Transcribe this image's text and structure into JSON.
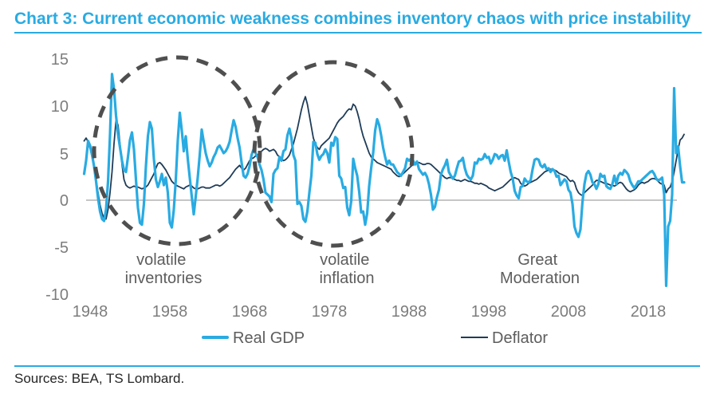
{
  "title": "Chart 3: Current economic weakness combines inventory chaos with price instability",
  "source_note": "Sources: BEA, TS Lombard.",
  "colors": {
    "accent_blue": "#29ABE2",
    "real_gdp_line": "#29ABE2",
    "deflator_line": "#1F3C58",
    "circle_gray": "#4F4F4F",
    "tick_gray": "#7D7D7D",
    "annotation_gray": "#5D5D5D",
    "zero_line_gray": "#B3B3B3"
  },
  "chart_data": {
    "type": "line",
    "title": "Chart 3: Current economic weakness combines inventory chaos with price instability",
    "xlabel": "",
    "ylabel": "",
    "x_start": 1947.25,
    "x_step": 0.25,
    "x_range": [
      1947,
      2023
    ],
    "ylim": [
      -10,
      15
    ],
    "grid": "zero-line-only",
    "legend_position": "bottom",
    "x_tick_labels": [
      "1948",
      "1958",
      "1968",
      "1978",
      "1988",
      "1998",
      "2008",
      "2018"
    ],
    "y_tick_labels": [
      "15",
      "10",
      "5",
      "0",
      "-5",
      "-10"
    ],
    "y_tick_values": [
      15,
      10,
      5,
      0,
      -5,
      -10
    ],
    "series": [
      {
        "id": "gdp",
        "name": "Real GDP",
        "color": "#29ABE2",
        "values": [
          2.8,
          4.2,
          6.3,
          5.8,
          4.8,
          3.6,
          2.0,
          0.2,
          -1.2,
          -2.0,
          -2.2,
          -1.0,
          2.0,
          7.0,
          13.4,
          11.8,
          9.0,
          7.0,
          5.6,
          4.2,
          3.2,
          3.0,
          4.6,
          6.4,
          7.2,
          5.4,
          2.2,
          -0.8,
          -2.4,
          -2.6,
          -0.4,
          3.6,
          6.8,
          8.3,
          7.6,
          4.4,
          2.2,
          1.4,
          2.0,
          2.8,
          1.6,
          2.4,
          0.8,
          -2.4,
          -2.9,
          -1.0,
          2.2,
          6.4,
          9.3,
          7.4,
          5.2,
          6.8,
          4.4,
          2.4,
          0.4,
          -1.5,
          0.4,
          2.4,
          4.8,
          7.5,
          6.2,
          5.0,
          4.2,
          3.6,
          4.0,
          4.6,
          5.0,
          5.6,
          5.8,
          5.4,
          5.0,
          5.2,
          5.6,
          6.2,
          7.4,
          8.5,
          7.8,
          6.6,
          5.6,
          4.0,
          2.6,
          2.4,
          2.8,
          3.6,
          4.8,
          5.4,
          5.0,
          4.6,
          3.8,
          3.2,
          2.2,
          0.8,
          0.6,
          0.4,
          -0.2,
          2.8,
          3.2,
          3.4,
          4.6,
          4.2,
          5.2,
          5.4,
          6.9,
          7.6,
          6.6,
          4.8,
          4.2,
          -0.4,
          -0.2,
          -0.6,
          -2.0,
          -2.3,
          -1.2,
          0.8,
          2.6,
          6.2,
          6.1,
          4.9,
          4.3,
          4.7,
          4.9,
          5.4,
          5.0,
          4.0,
          6.1,
          5.8,
          6.7,
          6.5,
          2.6,
          2.3,
          1.3,
          1.4,
          -0.8,
          -1.6,
          -0.1,
          4.4,
          3.4,
          2.6,
          0.9,
          -1.3,
          -1.2,
          -2.6,
          -1.4,
          1.5,
          3.4,
          5.0,
          7.4,
          8.6,
          8.0,
          6.9,
          5.6,
          4.6,
          3.8,
          4.2,
          3.8,
          3.8,
          3.4,
          3.0,
          2.8,
          2.6,
          3.0,
          3.4,
          4.4,
          4.2,
          4.4,
          4.2,
          3.8,
          4.1,
          3.3,
          3.0,
          2.7,
          2.9,
          2.5,
          1.7,
          0.6,
          -1.0,
          -0.7,
          0.3,
          1.1,
          2.7,
          3.3,
          3.7,
          4.3,
          3.0,
          2.6,
          2.3,
          2.6,
          3.4,
          4.1,
          4.2,
          4.5,
          3.4,
          2.7,
          2.4,
          2.2,
          2.6,
          4.0,
          3.9,
          4.4,
          4.3,
          4.4,
          4.9,
          4.5,
          4.6,
          3.9,
          4.3,
          4.9,
          4.8,
          4.4,
          4.7,
          4.8,
          4.2,
          5.3,
          4.1,
          3.0,
          2.3,
          1.0,
          0.5,
          0.2,
          1.4,
          1.5,
          2.3,
          2.0,
          1.9,
          2.1,
          3.3,
          4.3,
          4.4,
          4.3,
          3.7,
          3.5,
          3.8,
          3.3,
          3.4,
          3.0,
          3.3,
          3.1,
          2.5,
          2.6,
          1.6,
          1.9,
          2.2,
          2.0,
          1.1,
          0.8,
          -0.4,
          -2.8,
          -3.5,
          -3.9,
          -3.1,
          -0.2,
          1.7,
          2.8,
          3.1,
          2.7,
          1.9,
          1.7,
          1.2,
          1.7,
          2.8,
          2.5,
          2.6,
          1.5,
          1.3,
          1.2,
          1.7,
          2.6,
          1.7,
          2.6,
          2.9,
          2.7,
          3.2,
          3.0,
          2.7,
          2.0,
          1.6,
          1.3,
          1.6,
          2.0,
          2.0,
          2.2,
          2.4,
          2.6,
          2.8,
          3.0,
          3.1,
          2.8,
          2.3,
          2.1,
          2.2,
          2.4,
          0.6,
          -9.1,
          -2.8,
          -2.2,
          0.6,
          11.9,
          5.0,
          5.7,
          3.6,
          1.9,
          1.9
        ]
      },
      {
        "id": "deflator",
        "name": "Deflator",
        "color": "#1F3C58",
        "values": [
          6.3,
          6.6,
          6.2,
          5.5,
          4.6,
          3.4,
          2.2,
          0.8,
          -0.5,
          -1.4,
          -1.9,
          -2.0,
          -1.0,
          0.8,
          3.0,
          6.0,
          8.5,
          8.0,
          6.0,
          3.8,
          2.2,
          1.6,
          1.4,
          1.3,
          1.4,
          1.5,
          1.4,
          1.4,
          1.3,
          1.2,
          1.3,
          1.4,
          1.6,
          2.0,
          2.4,
          2.8,
          3.4,
          3.9,
          4.0,
          3.8,
          3.5,
          3.2,
          2.8,
          2.4,
          2.0,
          1.8,
          1.6,
          1.5,
          1.4,
          1.3,
          1.2,
          1.4,
          1.5,
          1.6,
          1.5,
          1.3,
          1.2,
          1.2,
          1.3,
          1.4,
          1.4,
          1.3,
          1.3,
          1.3,
          1.4,
          1.5,
          1.6,
          1.6,
          1.5,
          1.6,
          1.8,
          2.0,
          2.2,
          2.4,
          2.7,
          3.0,
          3.3,
          3.5,
          3.7,
          3.4,
          3.2,
          3.4,
          3.8,
          4.2,
          4.4,
          4.5,
          4.7,
          4.8,
          5.0,
          5.2,
          5.4,
          5.5,
          5.4,
          5.2,
          5.3,
          5.4,
          5.2,
          4.8,
          4.6,
          4.4,
          4.2,
          4.3,
          4.5,
          4.8,
          5.4,
          6.0,
          6.8,
          7.6,
          8.6,
          9.6,
          10.4,
          11.0,
          10.2,
          9.0,
          7.8,
          6.6,
          6.0,
          5.6,
          5.4,
          5.8,
          6.0,
          6.2,
          6.4,
          6.6,
          7.0,
          7.4,
          7.8,
          8.2,
          8.5,
          8.7,
          8.9,
          9.2,
          9.5,
          9.7,
          9.6,
          10.2,
          10.0,
          9.4,
          8.6,
          7.6,
          6.8,
          6.2,
          5.6,
          5.0,
          4.6,
          4.4,
          4.2,
          4.0,
          3.9,
          3.8,
          3.7,
          3.6,
          3.5,
          3.4,
          3.3,
          3.0,
          2.8,
          2.6,
          2.5,
          2.6,
          2.8,
          3.0,
          3.2,
          3.4,
          3.6,
          3.8,
          3.9,
          4.0,
          4.0,
          3.9,
          3.8,
          3.8,
          3.9,
          3.9,
          3.8,
          3.6,
          3.4,
          3.2,
          3.0,
          2.8,
          2.6,
          2.4,
          2.3,
          2.4,
          2.4,
          2.3,
          2.2,
          2.1,
          2.1,
          2.0,
          2.1,
          2.2,
          2.1,
          2.0,
          2.0,
          1.9,
          1.8,
          1.8,
          1.7,
          1.8,
          1.7,
          1.6,
          1.5,
          1.3,
          1.2,
          1.1,
          1.0,
          1.1,
          1.2,
          1.3,
          1.4,
          1.6,
          1.8,
          2.0,
          2.2,
          2.3,
          2.4,
          2.3,
          2.2,
          1.8,
          1.6,
          1.5,
          1.6,
          1.8,
          1.9,
          2.0,
          2.1,
          2.2,
          2.4,
          2.6,
          2.8,
          3.0,
          3.1,
          3.2,
          3.3,
          3.3,
          3.2,
          3.1,
          2.9,
          2.8,
          2.7,
          2.6,
          2.5,
          2.2,
          2.0,
          2.1,
          1.9,
          1.2,
          0.8,
          0.6,
          0.5,
          0.8,
          1.0,
          1.2,
          1.4,
          1.6,
          1.9,
          2.1,
          2.1,
          2.0,
          1.9,
          1.8,
          1.8,
          1.7,
          1.6,
          1.6,
          1.5,
          1.6,
          1.8,
          1.9,
          1.8,
          1.5,
          1.2,
          1.0,
          0.9,
          1.0,
          1.1,
          1.3,
          1.6,
          1.8,
          1.9,
          1.8,
          1.9,
          2.0,
          2.2,
          2.3,
          2.3,
          2.2,
          2.0,
          1.8,
          1.7,
          1.6,
          0.8,
          1.2,
          1.4,
          2.0,
          3.0,
          4.2,
          5.4,
          6.4,
          6.6,
          7.0
        ]
      }
    ],
    "annotations": [
      {
        "id": "volatile-inventories",
        "lines": [
          "volatile",
          "inventories"
        ]
      },
      {
        "id": "volatile-inflation",
        "lines": [
          "volatile",
          "inflation"
        ]
      },
      {
        "id": "great-moderation",
        "lines": [
          "Great",
          "Moderation"
        ]
      }
    ]
  }
}
